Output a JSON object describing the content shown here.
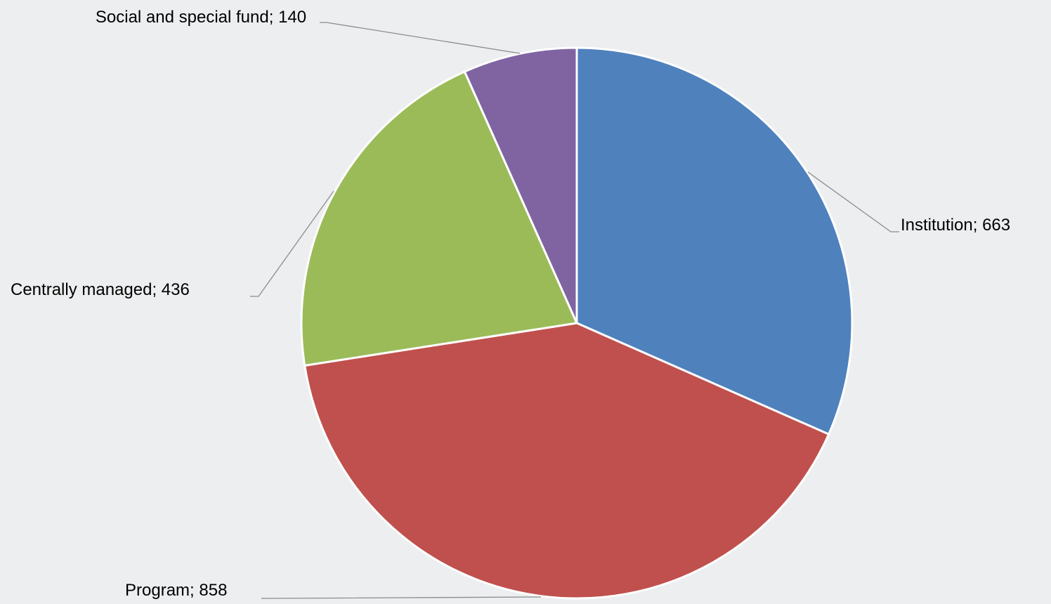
{
  "chart_data": {
    "type": "pie",
    "categories": [
      "Institution",
      "Program",
      "Centrally managed",
      "Social and special fund"
    ],
    "values": [
      663,
      858,
      436,
      140
    ],
    "colors": [
      "#4f81bd",
      "#c0504d",
      "#9bbb59",
      "#8064a2"
    ],
    "label_separator": "; "
  }
}
